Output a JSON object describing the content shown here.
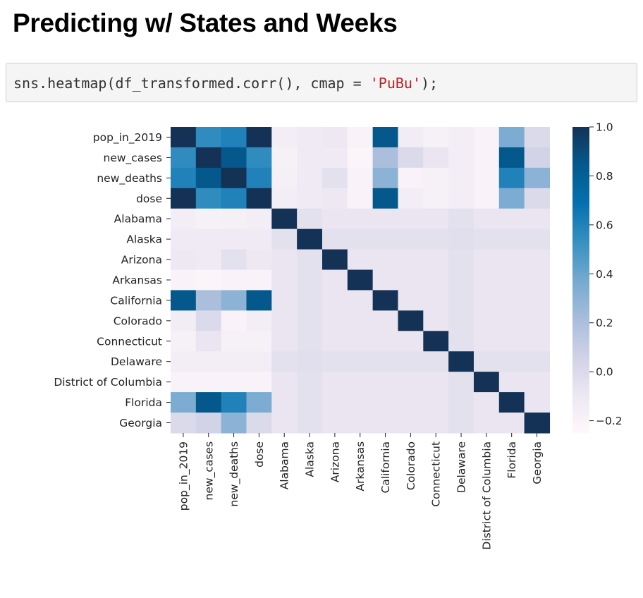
{
  "heading": "Predicting w/ States and Weeks",
  "code": {
    "prefix": "sns.heatmap(df_transformed.corr(), cmap = ",
    "string": "'PuBu'",
    "suffix": ");"
  },
  "chart_data": {
    "type": "heatmap",
    "colormap": "PuBu",
    "labels": [
      "pop_in_2019",
      "new_cases",
      "new_deaths",
      "dose",
      "Alabama",
      "Alaska",
      "Arizona",
      "Arkansas",
      "California",
      "Colorado",
      "Connecticut",
      "Delaware",
      "District of Columbia",
      "Florida",
      "Georgia"
    ],
    "matrix": [
      [
        1.0,
        0.55,
        0.6,
        1.0,
        -0.15,
        -0.12,
        -0.1,
        -0.2,
        0.85,
        -0.14,
        -0.18,
        -0.15,
        -0.2,
        0.35,
        0.0
      ],
      [
        0.55,
        1.0,
        0.85,
        0.55,
        -0.18,
        -0.12,
        -0.12,
        -0.22,
        0.2,
        0.0,
        -0.08,
        -0.15,
        -0.2,
        0.85,
        0.05
      ],
      [
        0.6,
        0.85,
        1.0,
        0.6,
        -0.17,
        -0.12,
        -0.05,
        -0.2,
        0.3,
        -0.2,
        -0.18,
        -0.15,
        -0.2,
        0.6,
        0.3
      ],
      [
        1.0,
        0.55,
        0.6,
        1.0,
        -0.15,
        -0.12,
        -0.1,
        -0.2,
        0.85,
        -0.15,
        -0.18,
        -0.15,
        -0.2,
        0.35,
        0.0
      ],
      [
        -0.15,
        -0.18,
        -0.17,
        -0.15,
        1.0,
        -0.05,
        -0.08,
        -0.08,
        -0.08,
        -0.08,
        -0.08,
        -0.05,
        -0.08,
        -0.08,
        -0.08
      ],
      [
        -0.12,
        -0.12,
        -0.12,
        -0.12,
        -0.05,
        1.0,
        -0.05,
        -0.05,
        -0.05,
        -0.05,
        -0.05,
        -0.03,
        -0.05,
        -0.05,
        -0.05
      ],
      [
        -0.1,
        -0.12,
        -0.05,
        -0.1,
        -0.08,
        -0.05,
        1.0,
        -0.08,
        -0.08,
        -0.08,
        -0.08,
        -0.05,
        -0.08,
        -0.08,
        -0.08
      ],
      [
        -0.2,
        -0.22,
        -0.2,
        -0.2,
        -0.08,
        -0.05,
        -0.08,
        1.0,
        -0.08,
        -0.08,
        -0.08,
        -0.05,
        -0.08,
        -0.08,
        -0.08
      ],
      [
        0.85,
        0.2,
        0.3,
        0.85,
        -0.08,
        -0.05,
        -0.08,
        -0.08,
        1.0,
        -0.08,
        -0.08,
        -0.05,
        -0.08,
        -0.08,
        -0.08
      ],
      [
        -0.14,
        0.0,
        -0.2,
        -0.15,
        -0.08,
        -0.05,
        -0.08,
        -0.08,
        -0.08,
        1.0,
        -0.08,
        -0.05,
        -0.08,
        -0.08,
        -0.08
      ],
      [
        -0.18,
        -0.08,
        -0.18,
        -0.18,
        -0.08,
        -0.05,
        -0.08,
        -0.08,
        -0.08,
        -0.08,
        1.0,
        -0.05,
        -0.08,
        -0.08,
        -0.08
      ],
      [
        -0.15,
        -0.15,
        -0.15,
        -0.15,
        -0.05,
        -0.03,
        -0.05,
        -0.05,
        -0.05,
        -0.05,
        -0.05,
        1.0,
        -0.05,
        -0.05,
        -0.05
      ],
      [
        -0.2,
        -0.2,
        -0.2,
        -0.2,
        -0.08,
        -0.05,
        -0.08,
        -0.08,
        -0.08,
        -0.08,
        -0.08,
        -0.05,
        1.0,
        -0.08,
        -0.08
      ],
      [
        0.35,
        0.85,
        0.6,
        0.35,
        -0.08,
        -0.05,
        -0.08,
        -0.08,
        -0.08,
        -0.08,
        -0.08,
        -0.05,
        -0.08,
        1.0,
        -0.08
      ],
      [
        0.0,
        0.05,
        0.3,
        0.0,
        -0.08,
        -0.05,
        -0.08,
        -0.08,
        -0.08,
        -0.08,
        -0.08,
        -0.05,
        -0.08,
        -0.08,
        1.0
      ]
    ],
    "vmin": -0.25,
    "vmax": 1.0,
    "colorbar_ticks": [
      {
        "value": 1.0,
        "label": "1.0"
      },
      {
        "value": 0.8,
        "label": "0.8"
      },
      {
        "value": 0.6,
        "label": "0.6"
      },
      {
        "value": 0.4,
        "label": "0.4"
      },
      {
        "value": 0.2,
        "label": "0.2"
      },
      {
        "value": 0.0,
        "label": "0.0"
      },
      {
        "value": -0.2,
        "label": "−0.2"
      }
    ]
  }
}
